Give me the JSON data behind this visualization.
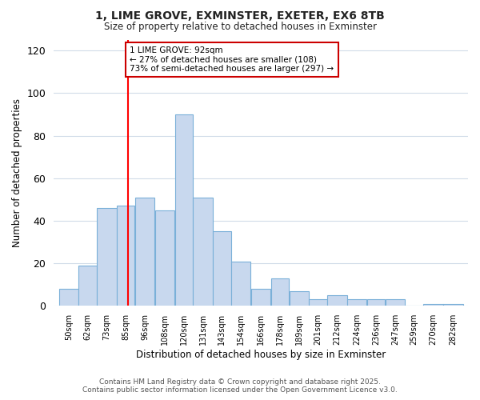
{
  "title1": "1, LIME GROVE, EXMINSTER, EXETER, EX6 8TB",
  "title2": "Size of property relative to detached houses in Exminster",
  "xlabel": "Distribution of detached houses by size in Exminster",
  "ylabel": "Number of detached properties",
  "bins": [
    50,
    62,
    73,
    85,
    96,
    108,
    120,
    131,
    143,
    154,
    166,
    178,
    189,
    201,
    212,
    224,
    236,
    247,
    259,
    270,
    282
  ],
  "values": [
    8,
    19,
    46,
    47,
    51,
    45,
    90,
    51,
    35,
    21,
    8,
    13,
    7,
    3,
    5,
    3,
    3,
    3,
    0,
    1,
    1
  ],
  "bar_color": "#c8d8ee",
  "bar_edge_color": "#7ab0d8",
  "red_line_x": 92,
  "ylim": [
    0,
    125
  ],
  "yticks": [
    0,
    20,
    40,
    60,
    80,
    100,
    120
  ],
  "annotation_title": "1 LIME GROVE: 92sqm",
  "annotation_line1": "← 27% of detached houses are smaller (108)",
  "annotation_line2": "73% of semi-detached houses are larger (297) →",
  "annotation_box_color": "#ffffff",
  "annotation_box_edge": "#cc0000",
  "footer1": "Contains HM Land Registry data © Crown copyright and database right 2025.",
  "footer2": "Contains public sector information licensed under the Open Government Licence v3.0.",
  "background_color": "#ffffff",
  "grid_color": "#d0dce8"
}
